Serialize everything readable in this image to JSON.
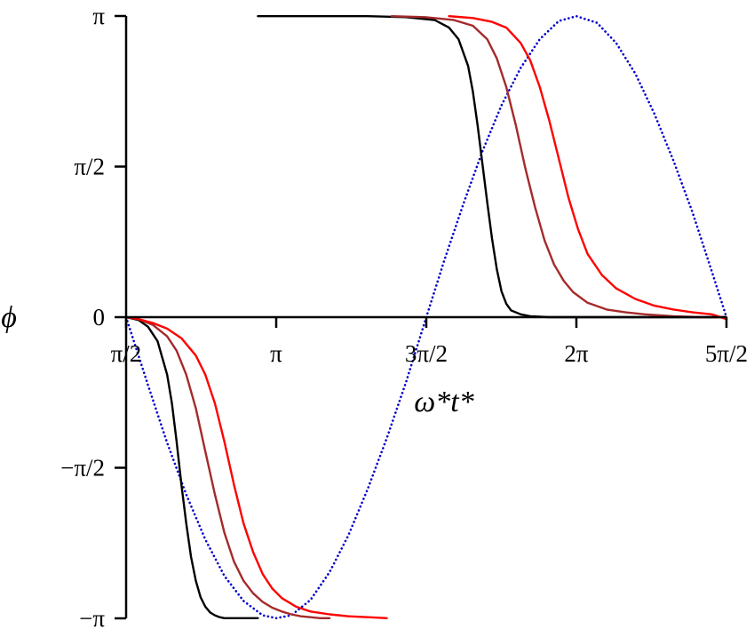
{
  "chart_data": {
    "type": "line",
    "xlabel": "ω*t*",
    "ylabel": "ϕ",
    "xlim": [
      1.5708,
      7.854
    ],
    "ylim": [
      -3.1416,
      3.1416
    ],
    "x_ticks": [
      {
        "value": 1.5708,
        "label": "π/2"
      },
      {
        "value": 3.1416,
        "label": "π"
      },
      {
        "value": 4.7124,
        "label": "3π/2"
      },
      {
        "value": 6.2832,
        "label": "2π"
      },
      {
        "value": 7.854,
        "label": "5π/2"
      }
    ],
    "y_ticks": [
      {
        "value": 3.1416,
        "label": "π"
      },
      {
        "value": 1.5708,
        "label": "π/2"
      },
      {
        "value": 0,
        "label": "0"
      },
      {
        "value": -1.5708,
        "label": "−π/2"
      },
      {
        "value": -3.1416,
        "label": "−π"
      }
    ],
    "grid": false,
    "series": [
      {
        "color": "#0000cc",
        "style": "dotted",
        "segments": [
          {
            "x": [
              1.5708,
              1.8,
              2.0,
              2.2,
              2.4,
              2.6,
              2.8,
              3.0,
              3.1416,
              3.3,
              3.5,
              3.7,
              3.9,
              4.1,
              4.3,
              4.5,
              4.7124,
              4.9,
              5.1,
              5.3,
              5.5,
              5.7,
              5.9,
              6.1,
              6.2832,
              6.5,
              6.7,
              6.9,
              7.1,
              7.3,
              7.5,
              7.7,
              7.854
            ],
            "y": [
              0.0,
              -0.71,
              -1.31,
              -1.85,
              -2.32,
              -2.7,
              -2.96,
              -3.11,
              -3.14,
              -3.11,
              -2.95,
              -2.66,
              -2.27,
              -1.79,
              -1.26,
              -0.68,
              0.0,
              0.59,
              1.18,
              1.73,
              2.21,
              2.6,
              2.9,
              3.09,
              3.14,
              3.07,
              2.86,
              2.54,
              2.12,
              1.63,
              1.09,
              0.48,
              0.0
            ]
          }
        ]
      },
      {
        "color": "#000000",
        "style": "solid",
        "segments": [
          {
            "x": [
              1.5708,
              1.7,
              1.8,
              1.9,
              2.0,
              2.05,
              2.1,
              2.15,
              2.2,
              2.25,
              2.3,
              2.35,
              2.4,
              2.45,
              2.5,
              2.55,
              2.6,
              2.7,
              2.8,
              2.95
            ],
            "y": [
              0.0,
              -0.03,
              -0.1,
              -0.25,
              -0.6,
              -0.9,
              -1.3,
              -1.75,
              -2.15,
              -2.5,
              -2.75,
              -2.92,
              -3.02,
              -3.08,
              -3.11,
              -3.13,
              -3.14,
              -3.14,
              -3.14,
              -3.14
            ]
          },
          {
            "x": [
              2.95,
              3.3,
              3.7,
              4.1,
              4.5,
              4.8,
              4.95,
              5.05,
              5.15,
              5.2,
              5.25,
              5.3,
              5.35,
              5.4,
              5.45,
              5.5,
              5.55,
              5.6,
              5.7,
              5.8,
              6.0,
              6.5,
              7.0,
              7.5,
              7.854
            ],
            "y": [
              3.14,
              3.14,
              3.14,
              3.14,
              3.13,
              3.1,
              3.02,
              2.9,
              2.62,
              2.35,
              2.0,
              1.6,
              1.2,
              0.82,
              0.5,
              0.27,
              0.14,
              0.07,
              0.03,
              0.01,
              0.0,
              0.0,
              0.0,
              0.0,
              0.0
            ]
          }
        ]
      },
      {
        "color": "#a52a2a",
        "style": "solid",
        "segments": [
          {
            "x": [
              1.5708,
              1.7,
              1.85,
              2.0,
              2.1,
              2.2,
              2.3,
              2.4,
              2.5,
              2.6,
              2.7,
              2.8,
              2.9,
              3.0,
              3.1,
              3.2,
              3.3,
              3.4,
              3.5,
              3.6,
              3.7
            ],
            "y": [
              0.0,
              -0.02,
              -0.08,
              -0.2,
              -0.35,
              -0.6,
              -0.95,
              -1.4,
              -1.85,
              -2.25,
              -2.55,
              -2.75,
              -2.88,
              -2.97,
              -3.03,
              -3.07,
              -3.1,
              -3.12,
              -3.13,
              -3.14,
              -3.14
            ]
          },
          {
            "x": [
              4.35,
              4.7,
              5.0,
              5.2,
              5.35,
              5.45,
              5.55,
              5.65,
              5.75,
              5.85,
              5.95,
              6.05,
              6.15,
              6.25,
              6.4,
              6.6,
              6.8,
              7.0,
              7.3,
              7.6,
              7.854
            ],
            "y": [
              3.14,
              3.13,
              3.1,
              3.04,
              2.9,
              2.7,
              2.4,
              2.0,
              1.55,
              1.15,
              0.8,
              0.55,
              0.38,
              0.26,
              0.15,
              0.08,
              0.05,
              0.03,
              0.01,
              0.0,
              0.0
            ]
          }
        ]
      },
      {
        "color": "#ff0000",
        "style": "solid",
        "segments": [
          {
            "x": [
              1.5708,
              1.7,
              1.85,
              2.0,
              2.15,
              2.3,
              2.4,
              2.5,
              2.6,
              2.7,
              2.8,
              2.9,
              3.0,
              3.1,
              3.2,
              3.35,
              3.5,
              3.7,
              3.9,
              4.1,
              4.3
            ],
            "y": [
              0.0,
              -0.02,
              -0.06,
              -0.12,
              -0.22,
              -0.4,
              -0.6,
              -0.9,
              -1.3,
              -1.75,
              -2.15,
              -2.45,
              -2.68,
              -2.83,
              -2.93,
              -3.02,
              -3.07,
              -3.1,
              -3.12,
              -3.13,
              -3.14
            ]
          },
          {
            "x": [
              4.95,
              5.2,
              5.4,
              5.55,
              5.7,
              5.8,
              5.9,
              6.0,
              6.1,
              6.2,
              6.3,
              6.4,
              6.55,
              6.7,
              6.9,
              7.1,
              7.3,
              7.5,
              7.7,
              7.854
            ],
            "y": [
              3.14,
              3.12,
              3.08,
              3.02,
              2.86,
              2.68,
              2.4,
              2.05,
              1.65,
              1.25,
              0.92,
              0.66,
              0.44,
              0.3,
              0.19,
              0.12,
              0.08,
              0.05,
              0.03,
              -0.02
            ]
          }
        ]
      }
    ]
  }
}
